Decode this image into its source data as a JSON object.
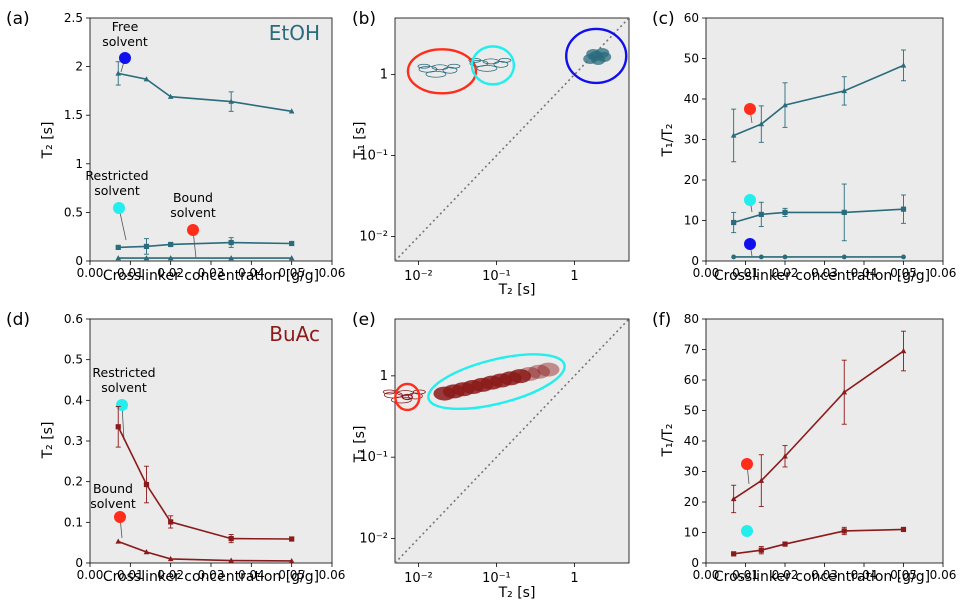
{
  "colors": {
    "etoh": "#2a6b7c",
    "buac": "#8b1a1a",
    "free": "#1010ee",
    "restricted": "#22eeee",
    "bound": "#ff2d1a",
    "panel_bg": "#ebebeb"
  },
  "panels": {
    "a": {
      "label": "(a)",
      "solvent": "EtOH",
      "ylabel": "T₂ [s]",
      "xlabel": "Crosslinker concentration [g/g]"
    },
    "b": {
      "label": "(b)",
      "ylabel": "T₁ [s]",
      "xlabel": "T₂ [s]"
    },
    "c": {
      "label": "(c)",
      "ylabel": "T₁/T₂",
      "xlabel": "Crosslinker concentration [g/g]"
    },
    "d": {
      "label": "(d)",
      "solvent": "BuAc",
      "ylabel": "T₂ [s]",
      "xlabel": "Crosslinker concentration [g/g]"
    },
    "e": {
      "label": "(e)",
      "ylabel": "T₁ [s]",
      "xlabel": "T₂ [s]"
    },
    "f": {
      "label": "(f)",
      "ylabel": "T₁/T₂",
      "xlabel": "Crosslinker concentration [g/g]"
    }
  },
  "annotations": {
    "free_a": [
      "Free",
      "solvent"
    ],
    "restricted_a": [
      "Restricted",
      "solvent"
    ],
    "bound_a": [
      "Bound",
      "solvent"
    ],
    "restricted_d": [
      "Restricted",
      "solvent"
    ],
    "bound_d": [
      "Bound",
      "solvent"
    ]
  },
  "chart_data": [
    {
      "id": "a",
      "type": "line",
      "xlim": [
        0,
        0.06
      ],
      "ylim": [
        0,
        2.5
      ],
      "xticks": [
        0.0,
        0.01,
        0.02,
        0.03,
        0.04,
        0.05,
        0.06
      ],
      "yticks": [
        0,
        0.5,
        1,
        1.5,
        2,
        2.5
      ],
      "ytick_labels": [
        "0",
        "0.5",
        "1",
        "1.5",
        "2",
        "2.5"
      ],
      "x": [
        0.007,
        0.014,
        0.02,
        0.035,
        0.05
      ],
      "series": [
        {
          "values": [
            1.93,
            1.87,
            1.69,
            1.64,
            1.54
          ],
          "err": [
            0.12,
            0,
            0,
            0.1,
            0
          ],
          "marker": "triangle"
        },
        {
          "values": [
            0.14,
            0.15,
            0.17,
            0.19,
            0.18
          ],
          "err": [
            0,
            0.08,
            0,
            0.05,
            0
          ],
          "marker": "square"
        },
        {
          "values": [
            0.03,
            0.03,
            0.03,
            0.03,
            0.03
          ],
          "err": [
            0,
            0,
            0,
            0,
            0
          ],
          "marker": "triangle"
        }
      ]
    },
    {
      "id": "b",
      "type": "scatter",
      "xscale": "log",
      "yscale": "log",
      "xlim": [
        0.005,
        5
      ],
      "ylim": [
        0.005,
        5
      ],
      "xticks": [
        0.01,
        0.1,
        1
      ],
      "xtick_labels": [
        "10⁻²",
        "10⁻¹",
        "1"
      ],
      "yticks": [
        0.01,
        0.1,
        1
      ],
      "ytick_labels": [
        "10⁻²",
        "10⁻¹",
        "1"
      ],
      "clusters": [
        {
          "t2": 0.02,
          "t1": 1.1,
          "style": "open",
          "circle": "bound"
        },
        {
          "t2": 0.09,
          "t1": 1.3,
          "style": "open",
          "circle": "restricted"
        },
        {
          "t2": 1.9,
          "t1": 1.7,
          "style": "filled",
          "circle": "free"
        }
      ]
    },
    {
      "id": "c",
      "type": "line",
      "xlim": [
        0,
        0.06
      ],
      "ylim": [
        0,
        60
      ],
      "xticks": [
        0.0,
        0.01,
        0.02,
        0.03,
        0.04,
        0.05,
        0.06
      ],
      "yticks": [
        0,
        10,
        20,
        30,
        40,
        50,
        60
      ],
      "ytick_labels": [
        "0",
        "10",
        "20",
        "30",
        "40",
        "50",
        "60"
      ],
      "x": [
        0.007,
        0.014,
        0.02,
        0.035,
        0.05
      ],
      "series": [
        {
          "values": [
            31,
            33.8,
            38.5,
            42,
            48.3
          ],
          "err": [
            6.5,
            4.5,
            5.5,
            3.5,
            3.8
          ],
          "marker": "triangle"
        },
        {
          "values": [
            9.5,
            11.5,
            12,
            12,
            12.8
          ],
          "err": [
            2.5,
            3,
            1,
            7,
            3.5
          ],
          "marker": "square"
        },
        {
          "values": [
            1,
            1,
            1,
            1,
            1
          ],
          "err": [
            0,
            0,
            0,
            0,
            0
          ],
          "marker": "circle"
        }
      ]
    },
    {
      "id": "d",
      "type": "line",
      "xlim": [
        0,
        0.06
      ],
      "ylim": [
        0,
        0.6
      ],
      "xticks": [
        0.0,
        0.01,
        0.02,
        0.03,
        0.04,
        0.05,
        0.06
      ],
      "yticks": [
        0,
        0.1,
        0.2,
        0.3,
        0.4,
        0.5,
        0.6
      ],
      "ytick_labels": [
        "0",
        "0.1",
        "0.2",
        "0.3",
        "0.4",
        "0.5",
        "0.6"
      ],
      "x": [
        0.007,
        0.014,
        0.02,
        0.035,
        0.05
      ],
      "series": [
        {
          "values": [
            0.335,
            0.193,
            0.101,
            0.06,
            0.059
          ],
          "err": [
            0.05,
            0.045,
            0.015,
            0.01,
            0.005
          ],
          "marker": "square"
        },
        {
          "values": [
            0.053,
            0.027,
            0.01,
            0.006,
            0.005
          ],
          "err": [
            0,
            0,
            0,
            0,
            0
          ],
          "marker": "triangle"
        }
      ]
    },
    {
      "id": "e",
      "type": "scatter",
      "xscale": "log",
      "yscale": "log",
      "xlim": [
        0.005,
        5
      ],
      "ylim": [
        0.005,
        5
      ],
      "xticks": [
        0.01,
        0.1,
        1
      ],
      "xtick_labels": [
        "10⁻²",
        "10⁻¹",
        "1"
      ],
      "yticks": [
        0.01,
        0.1,
        1
      ],
      "ytick_labels": [
        "10⁻²",
        "10⁻¹",
        "1"
      ],
      "clusters": [
        {
          "t2": 0.0072,
          "t1": 0.55,
          "style": "open",
          "circle": "bound"
        },
        {
          "t2": 0.1,
          "t1": 0.85,
          "style": "filled",
          "circle": "restricted"
        }
      ]
    },
    {
      "id": "f",
      "type": "line",
      "xlim": [
        0,
        0.06
      ],
      "ylim": [
        0,
        80
      ],
      "xticks": [
        0.0,
        0.01,
        0.02,
        0.03,
        0.04,
        0.05,
        0.06
      ],
      "yticks": [
        0,
        10,
        20,
        30,
        40,
        50,
        60,
        70,
        80
      ],
      "ytick_labels": [
        "0",
        "10",
        "20",
        "30",
        "40",
        "50",
        "60",
        "70",
        "80"
      ],
      "x": [
        0.007,
        0.014,
        0.02,
        0.035,
        0.05
      ],
      "series": [
        {
          "values": [
            21,
            27,
            35,
            56,
            69.5
          ],
          "err": [
            4.5,
            8.5,
            3.5,
            10.5,
            6.5
          ],
          "marker": "triangle"
        },
        {
          "values": [
            3,
            4.2,
            6.2,
            10.5,
            11
          ],
          "err": [
            0,
            1.2,
            0.5,
            1.2,
            0
          ],
          "marker": "square"
        }
      ]
    }
  ]
}
